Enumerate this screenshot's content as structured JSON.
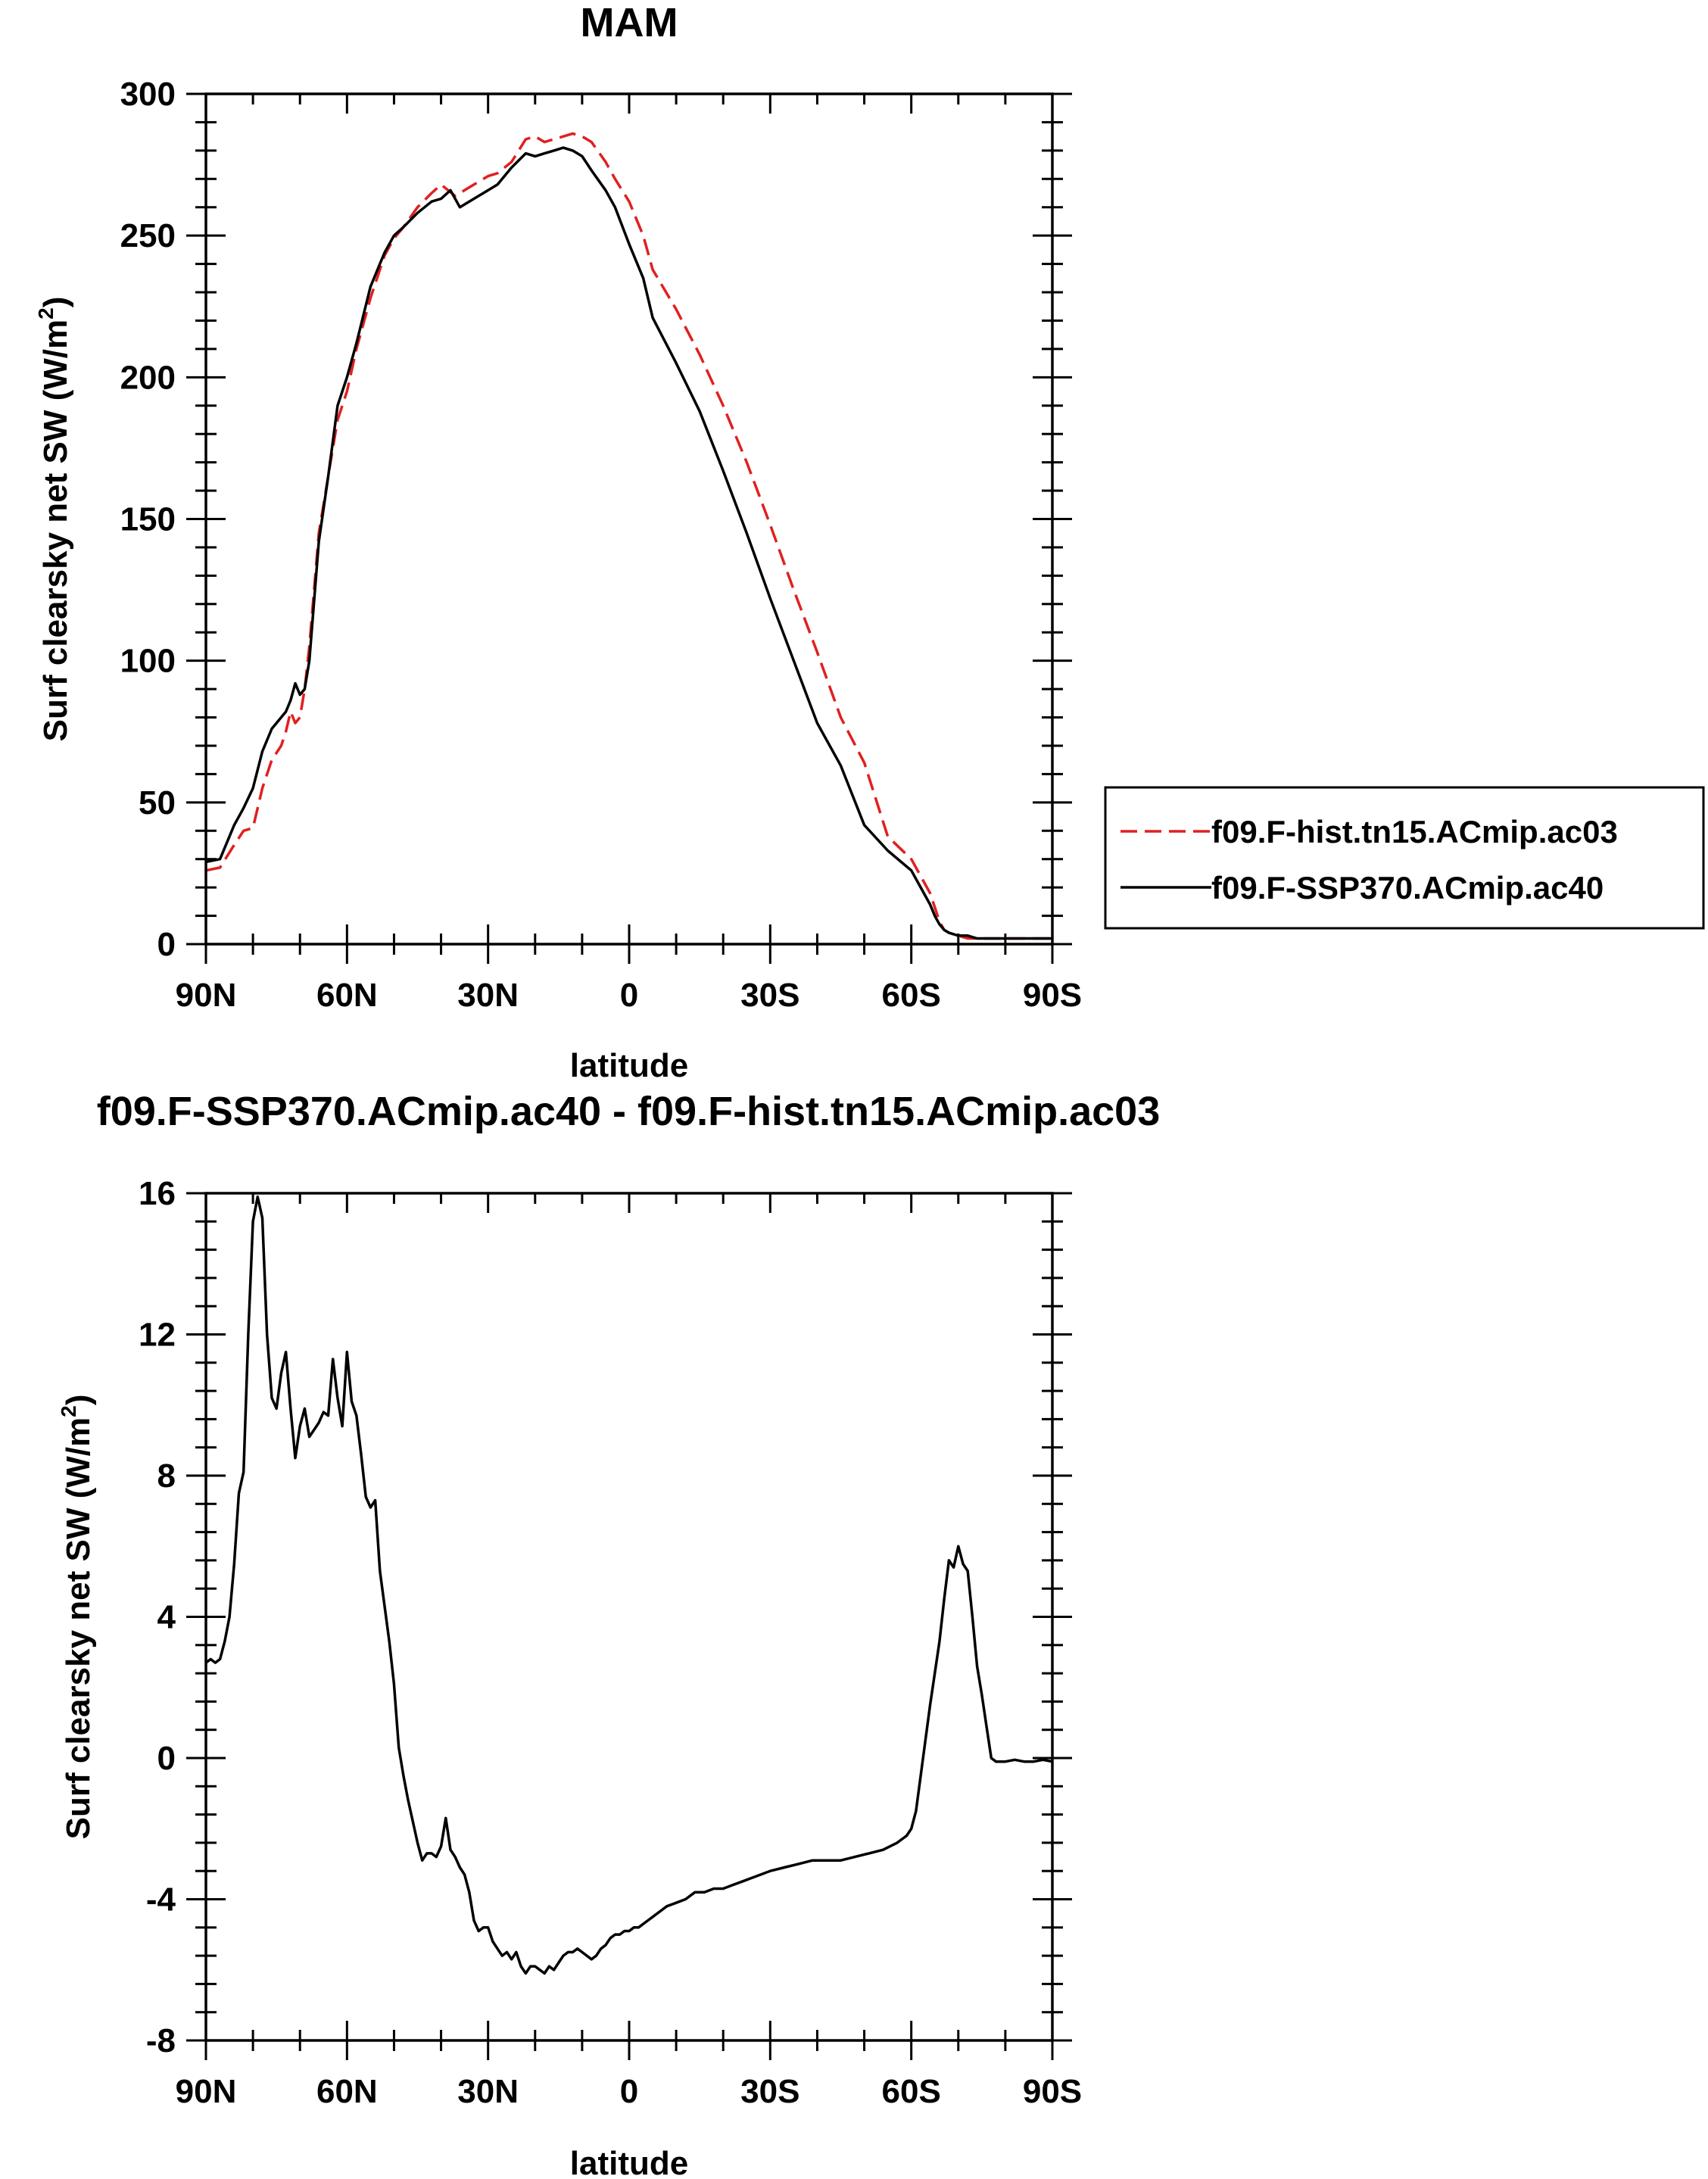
{
  "chart_data": [
    {
      "type": "line",
      "title": "MAM",
      "xlabel": "latitude",
      "ylabel": "Surf clearsky net SW (W/m²)",
      "ylabel_main": "Surf clearsky net SW (W/m",
      "ylabel_sup": "2",
      "ylabel_close": ")",
      "xlim": [
        90,
        -90
      ],
      "ylim": [
        0,
        300
      ],
      "x_ticks": [
        90,
        60,
        30,
        0,
        -30,
        -60,
        -90
      ],
      "x_tick_labels": [
        "90N",
        "60N",
        "30N",
        "0",
        "30S",
        "60S",
        "90S"
      ],
      "y_ticks": [
        0,
        50,
        100,
        150,
        200,
        250,
        300
      ],
      "y_tick_labels": [
        "0",
        "50",
        "100",
        "150",
        "200",
        "250",
        "300"
      ],
      "legend_position": "right",
      "series": [
        {
          "name": "f09.F-hist.tn15.ACmip.ac03",
          "color": "#e02020",
          "dash": "dashed",
          "x": [
            90,
            87,
            84,
            82,
            80,
            78,
            76,
            74,
            73,
            72,
            71,
            70,
            69,
            68,
            66,
            64,
            62,
            60,
            58,
            55,
            52,
            50,
            48,
            45,
            42,
            40,
            37,
            35,
            33,
            31,
            30,
            28,
            25,
            22,
            20,
            18,
            16,
            14,
            12,
            10,
            8,
            5,
            3,
            0,
            -3,
            -5,
            -10,
            -15,
            -20,
            -25,
            -30,
            -35,
            -40,
            -45,
            -50,
            -55,
            -60,
            -62,
            -64,
            -65,
            -66,
            -67,
            -68,
            -70,
            -72,
            -74,
            -76,
            -78,
            -80,
            -84,
            -87,
            -90
          ],
          "values": [
            26,
            27,
            35,
            40,
            41,
            55,
            65,
            70,
            75,
            82,
            78,
            80,
            90,
            105,
            145,
            165,
            185,
            195,
            210,
            228,
            243,
            249,
            253,
            260,
            265,
            268,
            264,
            266,
            268,
            270,
            271,
            272,
            276,
            284,
            285,
            283,
            284,
            285,
            286,
            285,
            283,
            276,
            270,
            262,
            250,
            238,
            224,
            208,
            190,
            170,
            148,
            125,
            103,
            80,
            64,
            38,
            30,
            24,
            18,
            13,
            8,
            5,
            4,
            3,
            2,
            2,
            2,
            2,
            2,
            2,
            2,
            2
          ]
        },
        {
          "name": "f09.F-SSP370.ACmip.ac40",
          "color": "#000000",
          "dash": "solid",
          "x": [
            90,
            87,
            84,
            82,
            80,
            78,
            76,
            75,
            74,
            73,
            72,
            71,
            70,
            69,
            68,
            66,
            64,
            62,
            60,
            58,
            55,
            52,
            50,
            48,
            45,
            42,
            40,
            38,
            36,
            34,
            33,
            32,
            31,
            30,
            28,
            25,
            22,
            20,
            18,
            16,
            14,
            12,
            10,
            8,
            5,
            3,
            0,
            -3,
            -5,
            -10,
            -15,
            -20,
            -25,
            -30,
            -35,
            -40,
            -45,
            -50,
            -55,
            -60,
            -62,
            -64,
            -65,
            -66,
            -67,
            -68,
            -70,
            -72,
            -74,
            -76,
            -78,
            -80,
            -84,
            -87,
            -90
          ],
          "values": [
            29,
            30,
            42,
            48,
            55,
            68,
            76,
            78,
            80,
            82,
            86,
            92,
            88,
            90,
            100,
            142,
            165,
            190,
            200,
            212,
            232,
            244,
            250,
            253,
            258,
            262,
            263,
            266,
            260,
            262,
            263,
            264,
            265,
            266,
            268,
            274,
            279,
            278,
            279,
            280,
            281,
            280,
            278,
            273,
            266,
            260,
            247,
            235,
            221,
            205,
            188,
            167,
            145,
            122,
            100,
            78,
            63,
            42,
            33,
            26,
            20,
            14,
            10,
            7,
            5,
            4,
            3,
            3,
            2,
            2,
            2,
            2,
            2,
            2,
            2
          ]
        }
      ]
    },
    {
      "type": "line",
      "title": "f09.F-SSP370.ACmip.ac40 - f09.F-hist.tn15.ACmip.ac03",
      "xlabel": "latitude",
      "ylabel": "Surf clearsky net SW (W/m²)",
      "ylabel_main": "Surf clearsky net SW (W/m",
      "ylabel_sup": "2",
      "ylabel_close": ")",
      "xlim": [
        90,
        -90
      ],
      "ylim": [
        -8,
        16
      ],
      "x_ticks": [
        90,
        60,
        30,
        0,
        -30,
        -60,
        -90
      ],
      "x_tick_labels": [
        "90N",
        "60N",
        "30N",
        "0",
        "30S",
        "60S",
        "90S"
      ],
      "y_ticks": [
        -8,
        -4,
        0,
        4,
        8,
        12,
        16
      ],
      "y_tick_labels": [
        "-8",
        "-4",
        "0",
        "4",
        "8",
        "12",
        "16"
      ],
      "series": [
        {
          "name": "f09.F-SSP370.ACmip.ac40 - f09.F-hist.tn15.ACmip.ac03",
          "color": "#000000",
          "dash": "solid",
          "x": [
            90,
            89,
            88,
            87,
            86,
            85,
            84,
            83,
            82,
            81,
            80,
            79,
            78,
            77,
            76,
            75,
            74,
            73,
            72,
            71,
            70,
            69,
            68,
            67,
            66,
            65,
            64,
            63,
            62,
            61,
            60,
            59,
            58,
            57,
            56,
            55,
            54,
            53,
            52,
            51,
            50,
            49,
            48,
            47,
            46,
            45,
            44,
            43,
            42,
            41,
            40,
            39,
            38,
            37,
            36,
            35,
            34,
            33,
            32,
            31,
            30,
            29,
            28,
            27,
            26,
            25,
            24,
            23,
            22,
            21,
            20,
            19,
            18,
            17,
            16,
            15,
            14,
            13,
            12,
            11,
            10,
            9,
            8,
            7,
            6,
            5,
            4,
            3,
            2,
            1,
            0,
            -1,
            -2,
            -3,
            -4,
            -5,
            -7,
            -8,
            -10,
            -12,
            -14,
            -16,
            -18,
            -20,
            -22,
            -24,
            -26,
            -28,
            -30,
            -33,
            -36,
            -39,
            -42,
            -45,
            -48,
            -51,
            -54,
            -57,
            -59,
            -60,
            -61,
            -62,
            -63,
            -64,
            -65,
            -66,
            -67,
            -68,
            -69,
            -70,
            -71,
            -72,
            -73,
            -74,
            -75,
            -76,
            -77,
            -78,
            -80,
            -82,
            -84,
            -86,
            -88,
            -90
          ],
          "values": [
            2.7,
            2.8,
            2.7,
            2.8,
            3.3,
            4.0,
            5.5,
            7.5,
            8.1,
            12.0,
            15.2,
            15.9,
            15.3,
            12.0,
            10.2,
            9.9,
            10.9,
            11.5,
            9.9,
            8.5,
            9.4,
            9.9,
            9.1,
            9.3,
            9.5,
            9.8,
            9.7,
            11.3,
            10.2,
            9.4,
            11.5,
            10.1,
            9.7,
            8.6,
            7.4,
            7.1,
            7.3,
            5.3,
            4.3,
            3.3,
            2.1,
            0.3,
            -0.5,
            -1.2,
            -1.8,
            -2.4,
            -2.9,
            -2.7,
            -2.7,
            -2.8,
            -2.5,
            -1.7,
            -2.6,
            -2.8,
            -3.1,
            -3.3,
            -3.8,
            -4.6,
            -4.9,
            -4.8,
            -4.8,
            -5.2,
            -5.4,
            -5.6,
            -5.5,
            -5.7,
            -5.5,
            -5.9,
            -6.1,
            -5.9,
            -5.9,
            -6.0,
            -6.1,
            -5.9,
            -6.0,
            -5.8,
            -5.6,
            -5.5,
            -5.5,
            -5.4,
            -5.5,
            -5.6,
            -5.7,
            -5.6,
            -5.4,
            -5.3,
            -5.1,
            -5.0,
            -5.0,
            -4.9,
            -4.9,
            -4.8,
            -4.8,
            -4.7,
            -4.6,
            -4.5,
            -4.3,
            -4.2,
            -4.1,
            -4.0,
            -3.8,
            -3.8,
            -3.7,
            -3.7,
            -3.6,
            -3.5,
            -3.4,
            -3.3,
            -3.2,
            -3.1,
            -3.0,
            -2.9,
            -2.9,
            -2.9,
            -2.8,
            -2.7,
            -2.6,
            -2.4,
            -2.2,
            -2.0,
            -1.5,
            -0.5,
            0.5,
            1.5,
            2.4,
            3.3,
            4.5,
            5.6,
            5.4,
            6.0,
            5.5,
            5.3,
            4.0,
            2.6,
            1.8,
            0.9,
            0.0,
            -0.1,
            -0.1,
            -0.05,
            -0.1,
            -0.1,
            -0.05,
            -0.1
          ]
        }
      ]
    }
  ]
}
